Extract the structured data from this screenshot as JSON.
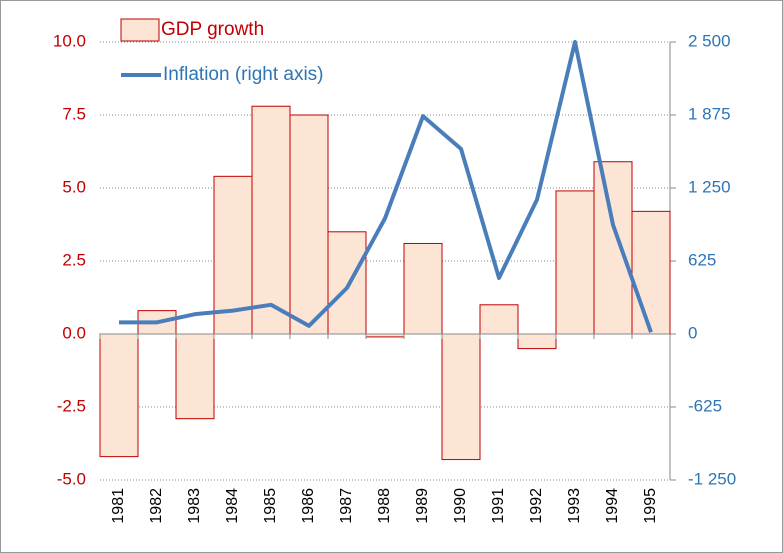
{
  "chart_data": {
    "type": "bar-line",
    "categories": [
      "1981",
      "1982",
      "1983",
      "1984",
      "1985",
      "1986",
      "1987",
      "1988",
      "1989",
      "1990",
      "1991",
      "1992",
      "1993",
      "1994",
      "1995"
    ],
    "series": [
      {
        "name": "GDP growth",
        "type": "bar",
        "color": "#fde5d6",
        "edgecolor": "#c00000",
        "values": [
          -4.2,
          0.8,
          -2.9,
          5.4,
          7.8,
          7.5,
          3.5,
          -0.1,
          3.1,
          -4.3,
          1.0,
          -0.5,
          4.9,
          5.9,
          4.2
        ]
      },
      {
        "name": "Inflation (right axis)",
        "type": "line",
        "axis": "y2",
        "color": "#4a7ebb",
        "values": [
          100,
          100,
          170,
          200,
          250,
          70,
          395,
          990,
          1865,
          1585,
          480,
          1150,
          2500,
          935,
          15
        ]
      }
    ],
    "ylim": [
      -5,
      10
    ],
    "yticks": [
      {
        "value": -5,
        "label": "-5.0"
      },
      -2.5,
      {
        "value": 0,
        "label": "0.0"
      },
      2.5,
      {
        "value": 5,
        "label": "5.0"
      },
      7.5,
      {
        "value": 10,
        "label": "10.0"
      }
    ],
    "y2lim": [
      -1250,
      2500
    ],
    "y2ticks": [
      {
        "value": -1250,
        "label": "-1 250"
      },
      -625,
      0,
      625,
      {
        "value": 1250,
        "label": "1 250"
      },
      {
        "value": 1875,
        "label": "1 875"
      },
      {
        "value": 2500,
        "label": "2 500"
      }
    ],
    "grid": true
  }
}
